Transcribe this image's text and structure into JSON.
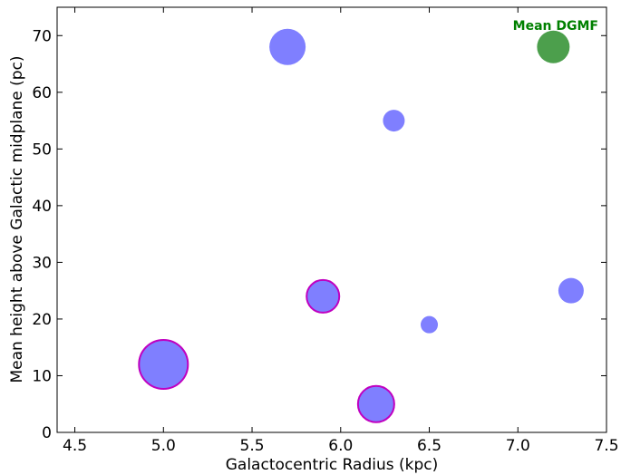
{
  "chart_data": {
    "type": "scatter",
    "xlabel": "Galactocentric Radius (kpc)",
    "ylabel": "Mean height above Galactic midplane (pc)",
    "xlim": [
      4.4,
      7.5
    ],
    "ylim": [
      0,
      75
    ],
    "x_ticks": [
      "4.5",
      "5.0",
      "5.5",
      "6.0",
      "6.5",
      "7.0",
      "7.5"
    ],
    "x_tick_values": [
      4.5,
      5.0,
      5.5,
      6.0,
      6.5,
      7.0,
      7.5
    ],
    "y_ticks": [
      "0",
      "10",
      "20",
      "30",
      "40",
      "50",
      "60",
      "70"
    ],
    "y_tick_values": [
      0,
      10,
      20,
      30,
      40,
      50,
      60,
      70
    ],
    "grid": false,
    "points": [
      {
        "x": 5.7,
        "y": 68,
        "relative_size": 20,
        "color": "#7f7fff",
        "edge": "none"
      },
      {
        "x": 6.3,
        "y": 55,
        "relative_size": 12,
        "color": "#7f7fff",
        "edge": "none"
      },
      {
        "x": 5.9,
        "y": 24,
        "relative_size": 18,
        "color": "#7f7fff",
        "edge": "#c000c0"
      },
      {
        "x": 6.5,
        "y": 19,
        "relative_size": 9.5,
        "color": "#7f7fff",
        "edge": "none"
      },
      {
        "x": 7.3,
        "y": 25,
        "relative_size": 14,
        "color": "#7f7fff",
        "edge": "none"
      },
      {
        "x": 5.0,
        "y": 12,
        "relative_size": 27,
        "color": "#7f7fff",
        "edge": "#c000c0"
      },
      {
        "x": 6.2,
        "y": 5,
        "relative_size": 20,
        "color": "#7f7fff",
        "edge": "#c000c0"
      },
      {
        "x": 7.2,
        "y": 68,
        "relative_size": 18,
        "color": "#4c9f4c",
        "edge": "none"
      }
    ],
    "annotations": [
      {
        "text": "Mean DGMF",
        "color": "#008000"
      }
    ]
  }
}
